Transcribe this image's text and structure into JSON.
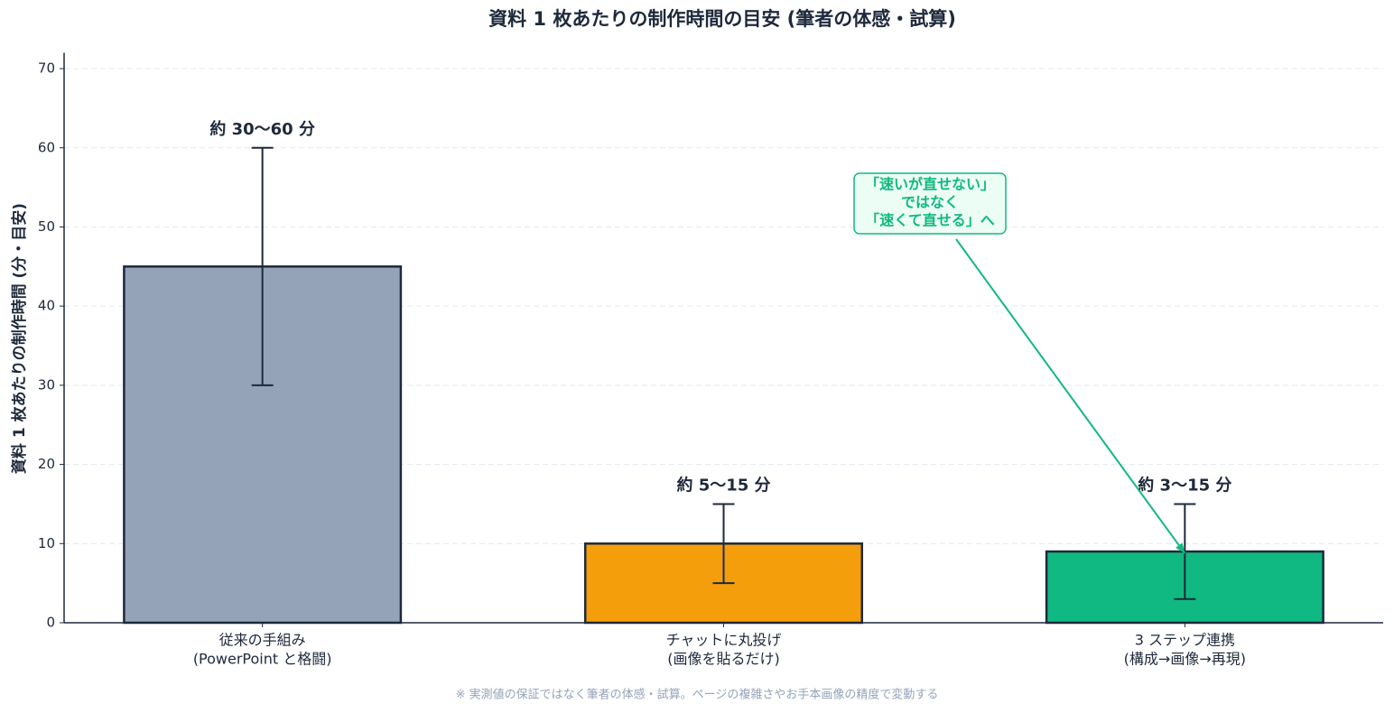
{
  "chart_data": {
    "type": "bar",
    "title": "資料 1 枚あたりの制作時間の目安 (筆者の体感・試算)",
    "ylabel": "資料 1 枚あたりの制作時間 (分・目安)",
    "categories": [
      [
        "従来の手組み",
        "(PowerPoint と格闘)"
      ],
      [
        "チャットに丸投げ",
        "(画像を貼るだけ)"
      ],
      [
        "3 ステップ連携",
        "(構成→画像→再現)"
      ]
    ],
    "values": [
      45,
      10,
      9
    ],
    "errors": [
      15,
      5,
      6
    ],
    "range_labels": [
      "約 30〜60 分",
      "約 5〜15 分",
      "約 3〜15 分"
    ],
    "colors": [
      "#94a3b8",
      "#f59e0b",
      "#10b981"
    ],
    "edge_color": "#1e293b",
    "ylim": [
      0,
      72
    ],
    "yticks": [
      0,
      10,
      20,
      30,
      40,
      50,
      60,
      70
    ],
    "grid": true,
    "annotation": {
      "lines": [
        "「速いが直せない」",
        "ではなく",
        "「速くて直せる」へ"
      ],
      "color": "#10b981",
      "target": 2
    },
    "footnote": "※ 実測値の保証ではなく筆者の体感・試算。ページの複雑さやお手本画像の精度で変動する"
  }
}
